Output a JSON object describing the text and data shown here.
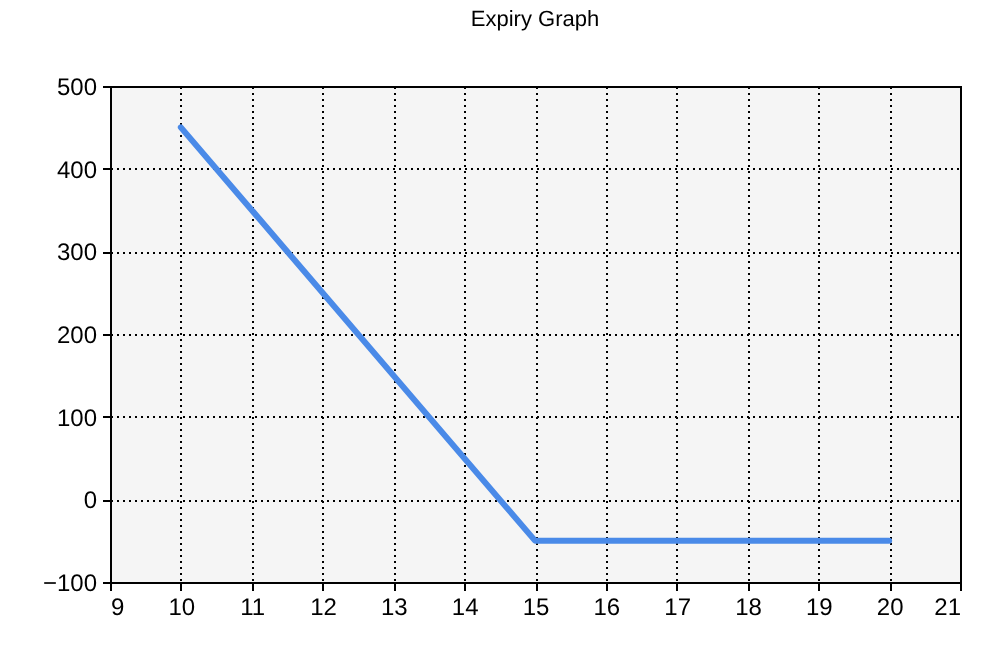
{
  "chart_data": {
    "type": "line",
    "title": "Expiry Graph",
    "x": [
      10,
      15,
      20
    ],
    "series": [
      {
        "color": "#4a8ae8",
        "values": [
          450,
          -50,
          -50
        ]
      }
    ],
    "xlim": [
      9,
      21
    ],
    "xticks": [
      9,
      10,
      11,
      12,
      13,
      14,
      15,
      16,
      17,
      18,
      19,
      20,
      21
    ],
    "ylim": [
      -100,
      500
    ],
    "yticks": [
      -100,
      0,
      100,
      200,
      300,
      400,
      500
    ],
    "grid": true
  }
}
